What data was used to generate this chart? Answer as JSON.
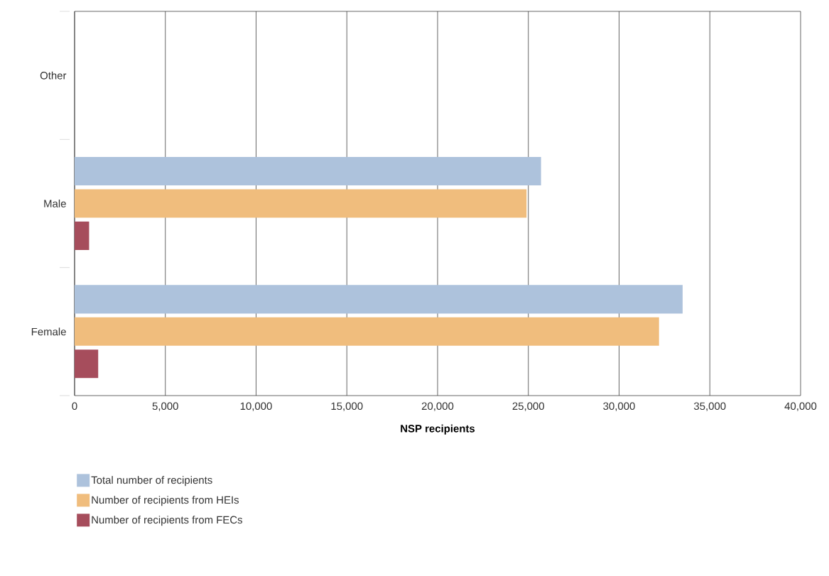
{
  "chart_data": {
    "type": "bar",
    "orientation": "horizontal",
    "xlabel": "NSP recipients",
    "categories": [
      "Other",
      "Male",
      "Female"
    ],
    "series": [
      {
        "name": "Total number of recipients",
        "color": "#adc2dc",
        "values": [
          null,
          25700,
          33500
        ]
      },
      {
        "name": "Number of recipients from HEIs",
        "color": "#f0bd7d",
        "values": [
          null,
          24900,
          32200
        ]
      },
      {
        "name": "Number of recipients from FECs",
        "color": "#a64d5c",
        "values": [
          null,
          800,
          1300
        ]
      }
    ],
    "xlim": [
      0,
      40000
    ],
    "xticks": [
      0,
      {
        "value": 5000,
        "label": "5,000"
      },
      {
        "value": 10000,
        "label": "10,000"
      },
      {
        "value": 15000,
        "label": "15,000"
      },
      {
        "value": 20000,
        "label": "20,000"
      },
      {
        "value": 25000,
        "label": "25,000"
      },
      {
        "value": 30000,
        "label": "30,000"
      },
      {
        "value": 35000,
        "label": "35,000"
      },
      {
        "value": 40000,
        "label": "40,000"
      }
    ],
    "grid": "x",
    "legend": "bottom"
  }
}
